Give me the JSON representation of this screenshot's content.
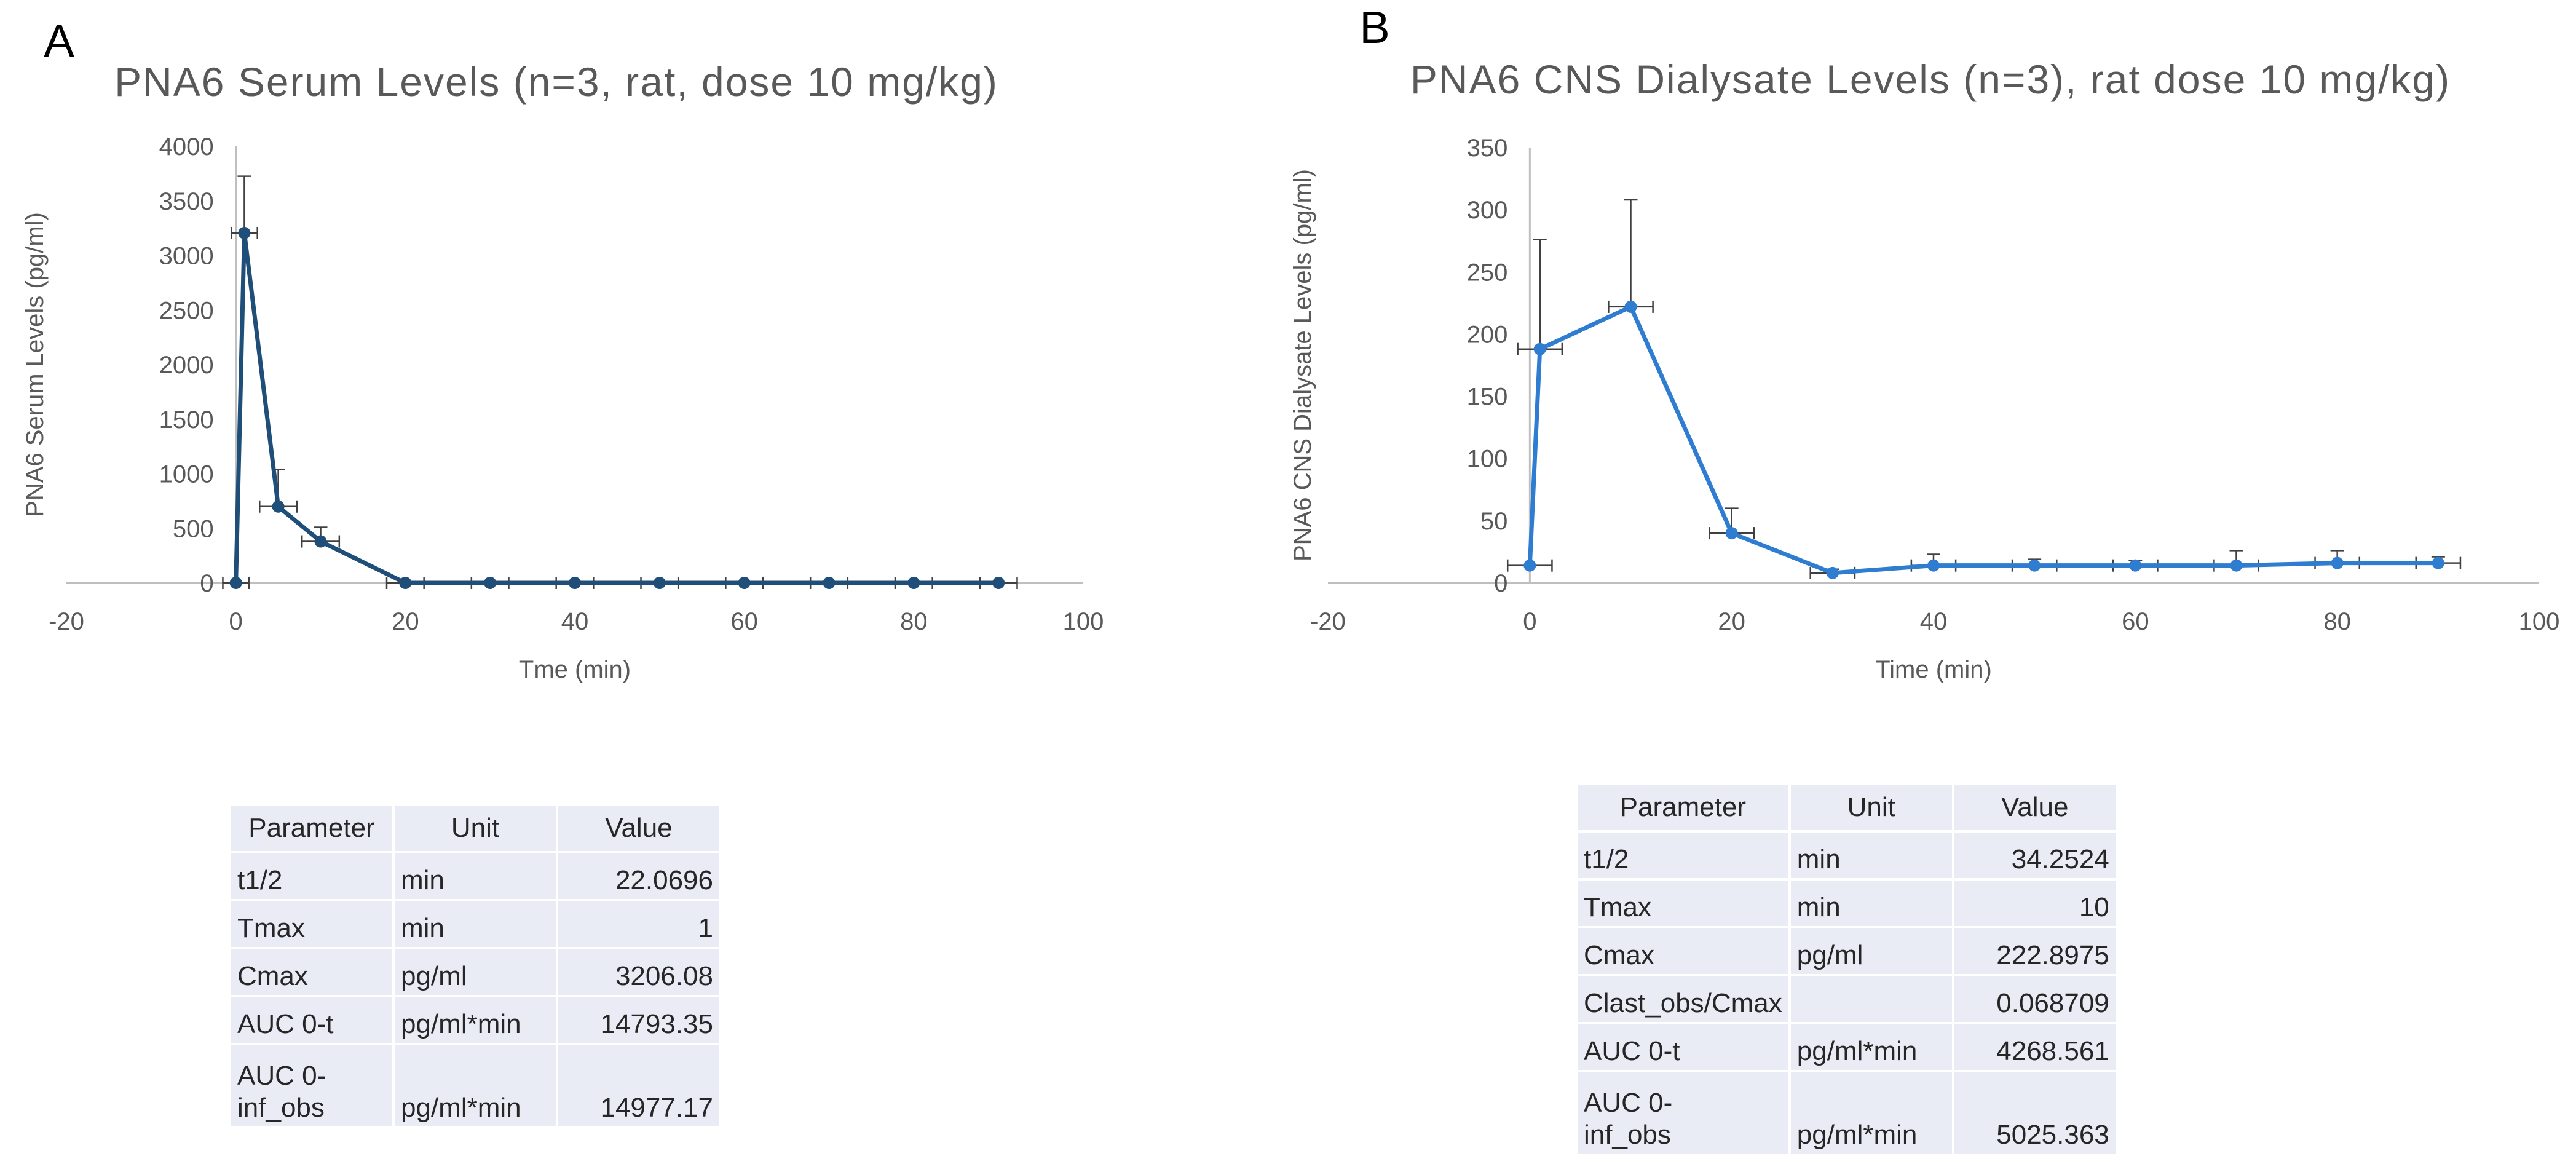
{
  "chart_data": [
    {
      "panel_label": "A",
      "type": "line",
      "title": "PNA6 Serum Levels (n=3, rat, dose 10 mg/kg)",
      "xlabel": "Tme (min)",
      "ylabel": "PNA6 Serum Levels (pg/ml)",
      "xlim": [
        -20,
        100
      ],
      "ylim": [
        0,
        4000
      ],
      "xticks": [
        -20,
        0,
        20,
        40,
        60,
        80,
        100
      ],
      "yticks": [
        0,
        500,
        1000,
        1500,
        2000,
        2500,
        3000,
        3500,
        4000
      ],
      "grid": false,
      "legend": "none",
      "color": "#1f4e79",
      "series": [
        {
          "x": [
            0,
            1,
            5,
            10,
            20,
            30,
            40,
            50,
            60,
            70,
            80,
            90
          ],
          "y": [
            0,
            3206,
            700,
            380,
            0,
            0,
            0,
            0,
            0,
            0,
            0,
            0
          ],
          "y_err": [
            0,
            520,
            340,
            130,
            0,
            0,
            0,
            0,
            0,
            0,
            0,
            0
          ],
          "x_err": [
            0.7,
            0.7,
            1,
            1,
            1,
            1,
            1,
            1,
            1,
            1,
            1,
            1
          ]
        }
      ]
    },
    {
      "panel_label": "B",
      "type": "line",
      "title": "PNA6 CNS Dialysate Levels (n=3), rat dose 10 mg/kg)",
      "xlabel": "Time (min)",
      "ylabel": "PNA6 CNS Dialysate Levels (pg/ml)",
      "xlim": [
        -20,
        100
      ],
      "ylim": [
        0,
        350
      ],
      "xticks": [
        -20,
        0,
        20,
        40,
        60,
        80,
        100
      ],
      "yticks": [
        0,
        50,
        100,
        150,
        200,
        250,
        300,
        350
      ],
      "grid": false,
      "legend": "none",
      "color": "#2e7dd1",
      "series": [
        {
          "x": [
            0,
            1,
            10,
            20,
            30,
            40,
            50,
            60,
            70,
            80,
            90
          ],
          "y": [
            14,
            188,
            222,
            40,
            8,
            14,
            14,
            14,
            14,
            16,
            16
          ],
          "y_err": [
            0,
            88,
            86,
            20,
            3,
            9,
            5,
            4,
            12,
            10,
            5
          ],
          "x_err": [
            1,
            1,
            1,
            1,
            1,
            1,
            1,
            1,
            1,
            1,
            1
          ]
        }
      ]
    }
  ],
  "tables": [
    {
      "headers": [
        "Parameter",
        "Unit",
        "Value"
      ],
      "rows": [
        [
          "t1/2",
          "min",
          "22.0696"
        ],
        [
          "Tmax",
          "min",
          "1"
        ],
        [
          "Cmax",
          "pg/ml",
          "3206.08"
        ],
        [
          "AUC 0-t",
          "pg/ml*min",
          "14793.35"
        ],
        [
          "AUC 0-\ninf_obs",
          "pg/ml*min",
          "14977.17"
        ]
      ]
    },
    {
      "headers": [
        "Parameter",
        "Unit",
        "Value"
      ],
      "rows": [
        [
          "t1/2",
          "min",
          "34.2524"
        ],
        [
          "Tmax",
          "min",
          "10"
        ],
        [
          "Cmax",
          "pg/ml",
          "222.8975"
        ],
        [
          "Clast_obs/Cmax",
          "",
          "0.068709"
        ],
        [
          "AUC 0-t",
          "pg/ml*min",
          "4268.561"
        ],
        [
          "AUC 0-\ninf_obs",
          "pg/ml*min",
          "5025.363"
        ]
      ]
    }
  ]
}
